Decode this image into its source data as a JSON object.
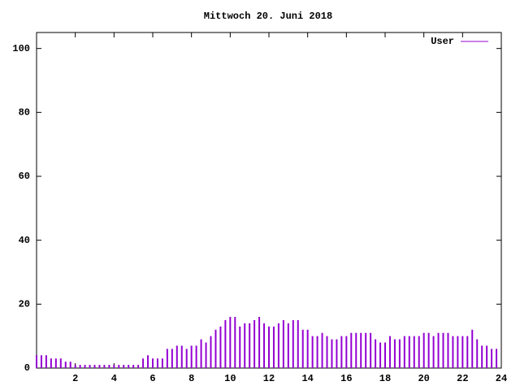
{
  "chart_data": {
    "type": "impulse",
    "title": "Mittwoch 20. Juni 2018",
    "xlim": [
      0,
      24
    ],
    "xticks": [
      2,
      4,
      6,
      8,
      10,
      12,
      14,
      16,
      18,
      20,
      22,
      24
    ],
    "ylim": [
      0,
      105
    ],
    "yticks": [
      0,
      20,
      40,
      60,
      80,
      100
    ],
    "legend": "top-right",
    "x": [
      0,
      0.25,
      0.5,
      0.75,
      1,
      1.25,
      1.5,
      1.75,
      2,
      2.25,
      2.5,
      2.75,
      3,
      3.25,
      3.5,
      3.75,
      4,
      4.25,
      4.5,
      4.75,
      5,
      5.25,
      5.5,
      5.75,
      6,
      6.25,
      6.5,
      6.75,
      7,
      7.25,
      7.5,
      7.75,
      8,
      8.25,
      8.5,
      8.75,
      9,
      9.25,
      9.5,
      9.75,
      10,
      10.25,
      10.5,
      10.75,
      11,
      11.25,
      11.5,
      11.75,
      12,
      12.25,
      12.5,
      12.75,
      13,
      13.25,
      13.5,
      13.75,
      14,
      14.25,
      14.5,
      14.75,
      15,
      15.25,
      15.5,
      15.75,
      16,
      16.25,
      16.5,
      16.75,
      17,
      17.25,
      17.5,
      17.75,
      18,
      18.25,
      18.5,
      18.75,
      19,
      19.25,
      19.5,
      19.75,
      20,
      20.25,
      20.5,
      20.75,
      21,
      21.25,
      21.5,
      21.75,
      22,
      22.25,
      22.5,
      22.75,
      23,
      23.25,
      23.5,
      23.75
    ],
    "series": [
      {
        "name": "User",
        "color": "#9400d3",
        "values": [
          4,
          4,
          4,
          3,
          3,
          3,
          2,
          2,
          1,
          1,
          1,
          1,
          1,
          1,
          1,
          1,
          1,
          1,
          1,
          1,
          1,
          1,
          3,
          4,
          3,
          3,
          3,
          6,
          6,
          7,
          7,
          6,
          7,
          7,
          9,
          8,
          10,
          12,
          13,
          15,
          16,
          16,
          13,
          14,
          14,
          15,
          16,
          14,
          13,
          13,
          14,
          15,
          14,
          15,
          15,
          12,
          12,
          10,
          10,
          11,
          10,
          9,
          9,
          10,
          10,
          11,
          11,
          11,
          11,
          11,
          9,
          8,
          8,
          10,
          9,
          9,
          10,
          10,
          10,
          10,
          11,
          11,
          10,
          11,
          11,
          11,
          10,
          10,
          10,
          10,
          12,
          9,
          7,
          7,
          6,
          6
        ]
      }
    ]
  }
}
